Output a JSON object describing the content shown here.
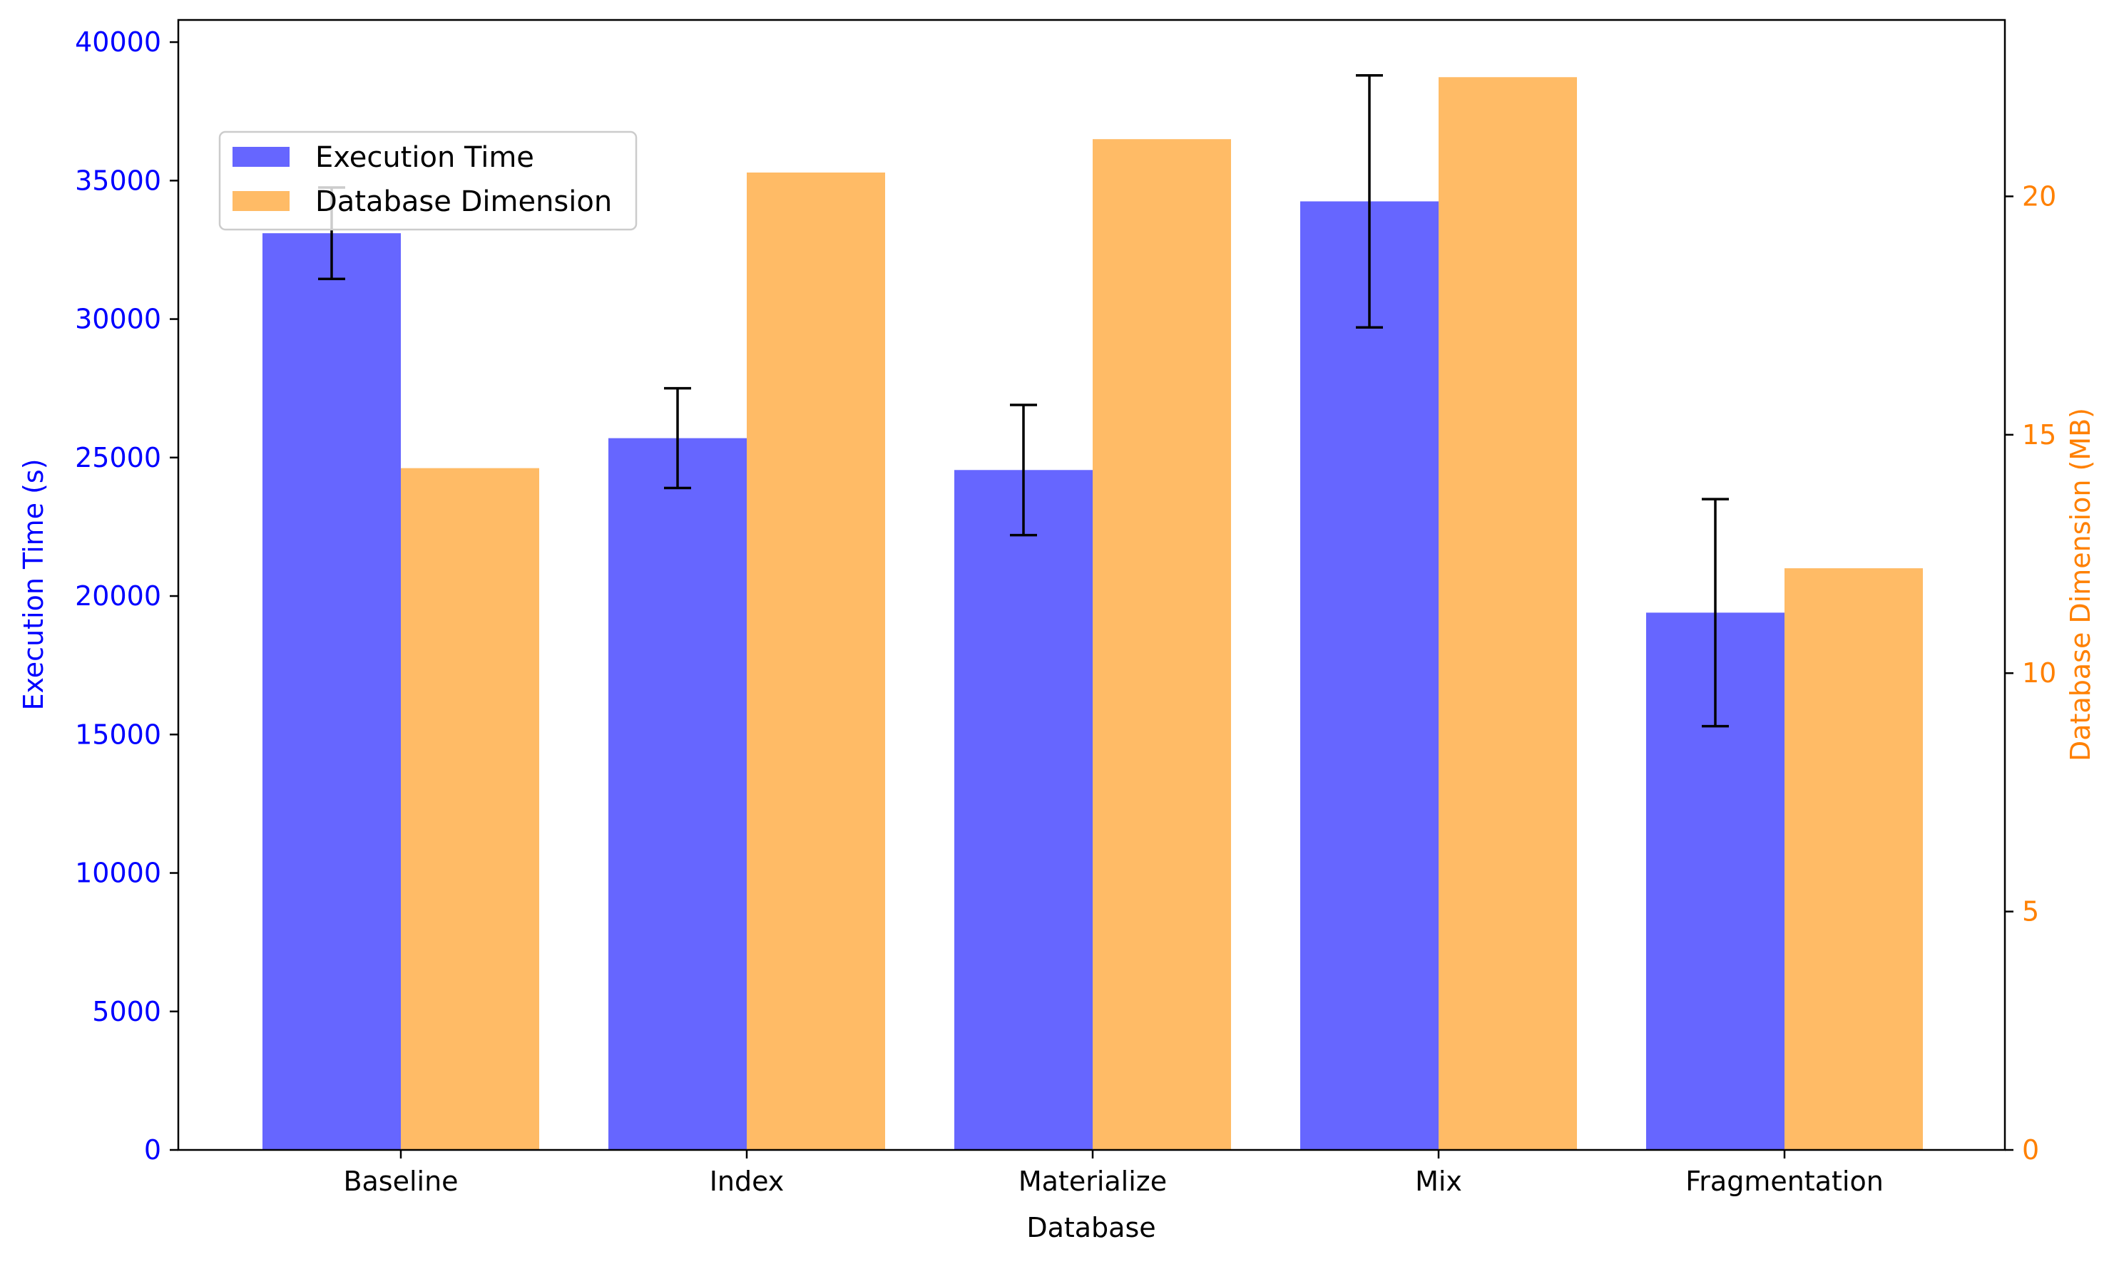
{
  "chart_data": {
    "type": "bar",
    "categories": [
      "Baseline",
      "Index",
      "Materialize",
      "Mix",
      "Fragmentation"
    ],
    "xlabel": "Database",
    "series": [
      {
        "name": "Execution Time",
        "axis": "left",
        "color": "#6666ff",
        "values": [
          33100,
          25700,
          24550,
          34250,
          19400
        ],
        "error": [
          1650,
          1800,
          2350,
          4550,
          4100
        ]
      },
      {
        "name": "Database Dimension",
        "axis": "right",
        "color": "#ffbb66",
        "values": [
          14.3,
          20.5,
          21.2,
          22.5,
          12.2
        ]
      }
    ],
    "left_axis": {
      "label": "Execution Time (s)",
      "color": "#0000ff",
      "ylim": [
        0,
        40800
      ],
      "ticks": [
        0,
        5000,
        10000,
        15000,
        20000,
        25000,
        30000,
        35000,
        40000
      ]
    },
    "right_axis": {
      "label": "Database Dimension (MB)",
      "color": "#ff8000",
      "ylim": [
        0,
        23.7
      ],
      "ticks": [
        0,
        5,
        10,
        15,
        20
      ]
    },
    "legend": {
      "position": "upper-left"
    },
    "grid": false
  }
}
